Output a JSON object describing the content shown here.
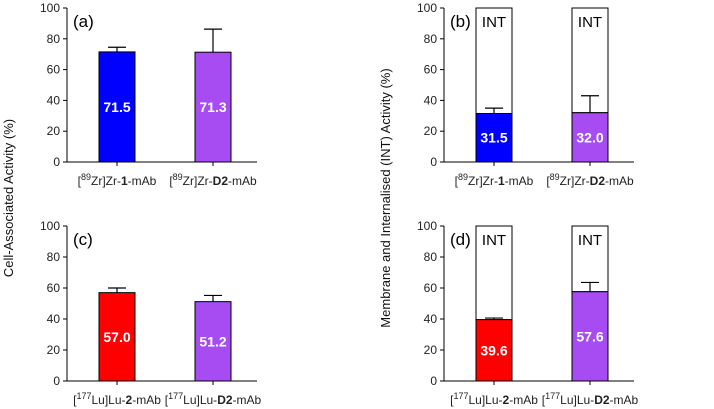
{
  "ylabels": {
    "left": "Cell-Associated Activity (%)",
    "right": "Membrane and Internalised (INT) Activity (%)"
  },
  "chart_data": [
    {
      "id": "a",
      "panel_label": "(a)",
      "type": "bar",
      "stacked": false,
      "ylim": [
        0,
        100
      ],
      "yticks": [
        "0",
        "20",
        "40",
        "60",
        "80",
        "100"
      ],
      "ylabel": "Cell-Associated Activity (%)",
      "categories": [
        {
          "pre": "[",
          "sup": "89",
          "mid": "Zr]Zr-",
          "bold": "1",
          "post": "-mAb"
        },
        {
          "pre": "[",
          "sup": "89",
          "mid": "Zr]Zr-",
          "bold": "D2",
          "post": "-mAb"
        }
      ],
      "values": [
        71.5,
        71.3
      ],
      "value_labels": [
        "71.5",
        "71.3"
      ],
      "errors": [
        3,
        15
      ],
      "colors": [
        "#0000ff",
        "#a64cf2"
      ]
    },
    {
      "id": "b",
      "panel_label": "(b)",
      "type": "bar",
      "stacked": true,
      "ylim": [
        0,
        100
      ],
      "yticks": [
        "0",
        "20",
        "40",
        "60",
        "80",
        "100"
      ],
      "ylabel": "Membrane and Internalised (INT) Activity (%)",
      "categories": [
        {
          "pre": "[",
          "sup": "89",
          "mid": "Zr]Zr-",
          "bold": "1",
          "post": "-mAb"
        },
        {
          "pre": "[",
          "sup": "89",
          "mid": "Zr]Zr-",
          "bold": "D2",
          "post": "-mAb"
        }
      ],
      "values": [
        31.5,
        32.0
      ],
      "value_labels": [
        "31.5",
        "32.0"
      ],
      "errors": [
        3.5,
        11
      ],
      "stack_total": 100,
      "top_segment_label": "INT",
      "colors": [
        "#0000ff",
        "#a64cf2"
      ]
    },
    {
      "id": "c",
      "panel_label": "(c)",
      "type": "bar",
      "stacked": false,
      "ylim": [
        0,
        100
      ],
      "yticks": [
        "0",
        "20",
        "40",
        "60",
        "80",
        "100"
      ],
      "ylabel": "Cell-Associated Activity (%)",
      "categories": [
        {
          "pre": "[",
          "sup": "177",
          "mid": "Lu]Lu-",
          "bold": "2",
          "post": "-mAb"
        },
        {
          "pre": "[",
          "sup": "177",
          "mid": "Lu]Lu-",
          "bold": "D2",
          "post": "-mAb"
        }
      ],
      "values": [
        57.0,
        51.2
      ],
      "value_labels": [
        "57.0",
        "51.2"
      ],
      "errors": [
        3,
        4
      ],
      "colors": [
        "#ff0000",
        "#a64cf2"
      ]
    },
    {
      "id": "d",
      "panel_label": "(d)",
      "type": "bar",
      "stacked": true,
      "ylim": [
        0,
        100
      ],
      "yticks": [
        "0",
        "20",
        "40",
        "60",
        "80",
        "100"
      ],
      "ylabel": "Membrane and Internalised (INT) Activity (%)",
      "categories": [
        {
          "pre": "[",
          "sup": "177",
          "mid": "Lu]Lu-",
          "bold": "2",
          "post": "-mAb"
        },
        {
          "pre": "[",
          "sup": "177",
          "mid": "Lu]Lu-",
          "bold": "D2",
          "post": "-mAb"
        }
      ],
      "values": [
        39.6,
        57.6
      ],
      "value_labels": [
        "39.6",
        "57.6"
      ],
      "errors": [
        1,
        6
      ],
      "stack_total": 100,
      "top_segment_label": "INT",
      "colors": [
        "#ff0000",
        "#a64cf2"
      ]
    }
  ]
}
